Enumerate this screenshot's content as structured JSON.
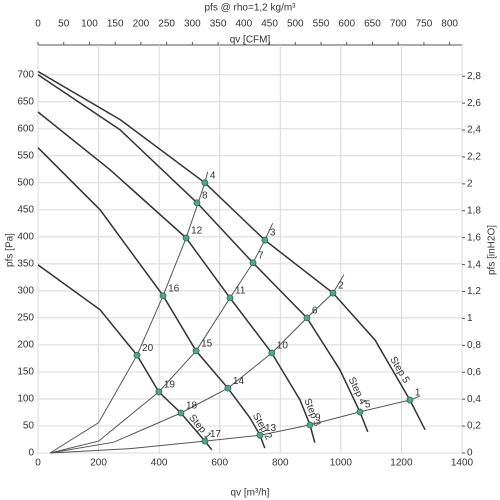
{
  "chart_data": {
    "type": "line",
    "title": "pfs @ rho=1,2 kg/m³",
    "x_label": "qv [m³/h]",
    "x2_label": "qv [CFM]",
    "y_label": "pfs [Pa]",
    "y2_label": "pfs [inH2O]",
    "xlim": [
      0,
      1400
    ],
    "xticks": [
      0,
      200,
      400,
      600,
      800,
      1000,
      1200,
      1400
    ],
    "x2lim": [
      0,
      824
    ],
    "x2ticks": [
      0,
      50,
      100,
      150,
      200,
      250,
      300,
      350,
      400,
      450,
      500,
      550,
      600,
      650,
      700,
      750,
      800
    ],
    "ylim": [
      0,
      755
    ],
    "yticks": [
      0,
      50,
      100,
      150,
      200,
      250,
      300,
      350,
      400,
      450,
      500,
      550,
      600,
      650,
      700
    ],
    "y2lim": [
      0,
      3.032
    ],
    "y2ticks": [
      0,
      {
        "value": 0.2,
        "label": "0,2"
      },
      {
        "value": 0.4,
        "label": "0,4"
      },
      {
        "value": 0.6,
        "label": "0,6"
      },
      {
        "value": 0.8,
        "label": "0,8"
      },
      1,
      {
        "value": 1.2,
        "label": "1,2"
      },
      {
        "value": 1.4,
        "label": "1,4"
      },
      {
        "value": 1.6,
        "label": "1,6"
      },
      {
        "value": 1.8,
        "label": "1,8"
      },
      2,
      {
        "value": 2.2,
        "label": "2,2"
      },
      {
        "value": 2.4,
        "label": "2,4"
      },
      {
        "value": 2.6,
        "label": "2,6"
      },
      {
        "value": 2.8,
        "label": "2,8"
      }
    ],
    "grid": true,
    "series": [
      {
        "name": "Step 5",
        "color": "#333333",
        "x": [
          0,
          271,
          551,
          749,
          974,
          1113,
          1228,
          1278
        ],
        "values": [
          706,
          617,
          500,
          394,
          296,
          209,
          98,
          43
        ]
      },
      {
        "name": "Step 4",
        "color": "#333333",
        "x": [
          0,
          271,
          525,
          710,
          888,
          997,
          1063,
          1089
        ],
        "values": [
          700,
          598,
          463,
          352,
          250,
          154,
          76,
          39
        ]
      },
      {
        "name": "Step 3",
        "color": "#333333",
        "x": [
          0,
          238,
          489,
          634,
          772,
          865,
          898,
          914
        ],
        "values": [
          631,
          524,
          398,
          287,
          185,
          98,
          52,
          19
        ]
      },
      {
        "name": "Step 2",
        "color": "#333333",
        "x": [
          0,
          205,
          413,
          522,
          627,
          700,
          733,
          749
        ],
        "values": [
          565,
          450,
          291,
          189,
          120,
          65,
          33,
          9
        ]
      },
      {
        "name": "Step 1",
        "color": "#333333",
        "x": [
          0,
          205,
          327,
          399,
          472,
          551,
          574
        ],
        "values": [
          348,
          265,
          181,
          113,
          74,
          22,
          6
        ]
      }
    ],
    "system_curves": [
      {
        "color": "#555555",
        "x": [
          40,
          200,
          327,
          413,
          489,
          551,
          560
        ],
        "values": [
          0,
          56,
          181,
          291,
          398,
          500,
          520
        ]
      },
      {
        "color": "#555555",
        "x": [
          40,
          200,
          399,
          522,
          634,
          710,
          749,
          775
        ],
        "values": [
          0,
          22,
          113,
          189,
          287,
          352,
          394,
          425
        ]
      },
      {
        "color": "#555555",
        "x": [
          40,
          250,
          472,
          627,
          772,
          888,
          974,
          1010
        ],
        "values": [
          0,
          20,
          74,
          120,
          185,
          250,
          296,
          330
        ]
      },
      {
        "color": "#555555",
        "x": [
          40,
          300,
          551,
          733,
          898,
          1063,
          1228,
          1260
        ],
        "values": [
          0,
          8,
          22,
          33,
          52,
          76,
          98,
          105
        ]
      }
    ],
    "point_color": "#4fa88a",
    "points": [
      {
        "label": "1",
        "x": 1228,
        "y": 98
      },
      {
        "label": "2",
        "x": 974,
        "y": 296
      },
      {
        "label": "3",
        "x": 749,
        "y": 394
      },
      {
        "label": "4",
        "x": 551,
        "y": 500
      },
      {
        "label": "5",
        "x": 1063,
        "y": 76
      },
      {
        "label": "6",
        "x": 888,
        "y": 250
      },
      {
        "label": "7",
        "x": 710,
        "y": 352
      },
      {
        "label": "8",
        "x": 525,
        "y": 463
      },
      {
        "label": "9",
        "x": 898,
        "y": 52
      },
      {
        "label": "10",
        "x": 772,
        "y": 185
      },
      {
        "label": "11",
        "x": 634,
        "y": 287
      },
      {
        "label": "12",
        "x": 489,
        "y": 398
      },
      {
        "label": "13",
        "x": 733,
        "y": 33
      },
      {
        "label": "14",
        "x": 627,
        "y": 120
      },
      {
        "label": "15",
        "x": 522,
        "y": 189
      },
      {
        "label": "16",
        "x": 413,
        "y": 291
      },
      {
        "label": "17",
        "x": 551,
        "y": 22
      },
      {
        "label": "18",
        "x": 472,
        "y": 74
      },
      {
        "label": "19",
        "x": 399,
        "y": 113
      },
      {
        "label": "20",
        "x": 327,
        "y": 181
      }
    ]
  }
}
